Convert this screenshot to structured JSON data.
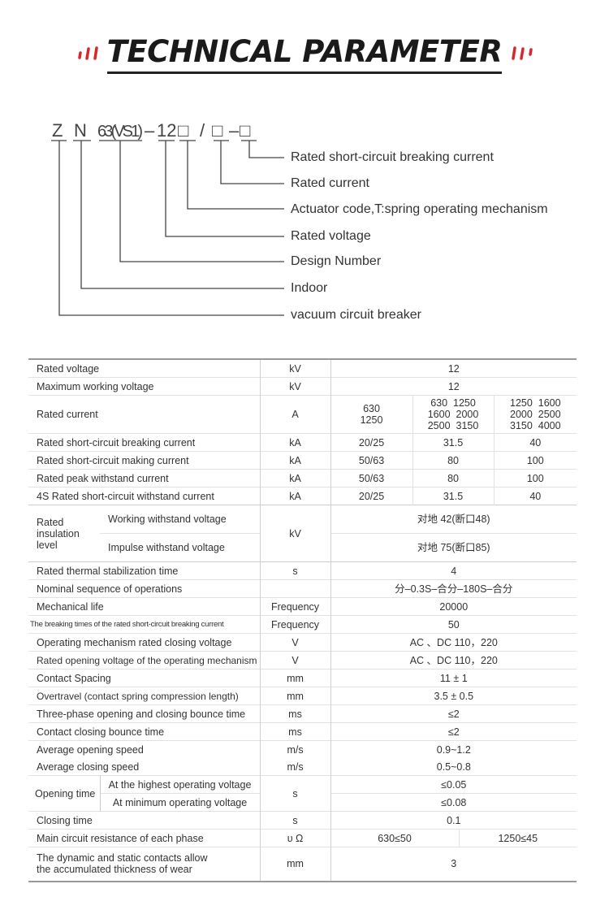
{
  "title": "TECHNICAL PARAMETER",
  "colors": {
    "accent": "#d8262c",
    "text": "#333333"
  },
  "model_code": {
    "z": "Z",
    "n": "N",
    "design": "63(VS1)",
    "dash1": "–",
    "voltage": "12",
    "box1": "□",
    "slash": "/",
    "box2": "□",
    "dash2": "–",
    "box3": "□"
  },
  "legend": [
    "Rated short-circuit breaking current",
    "Rated current",
    "Actuator code,T:spring operating mechanism",
    "Rated voltage",
    "Design Number",
    "Indoor",
    "vacuum circuit breaker"
  ],
  "table": {
    "r1": {
      "label": "Rated voltage",
      "unit": "kV",
      "value": "12"
    },
    "r2": {
      "label": "Maximum working voltage",
      "unit": "kV",
      "value": "12"
    },
    "r3": {
      "label": "Rated current",
      "unit": "A",
      "v1": "630\n1250",
      "v2": "630  1250\n1600  2000\n2500  3150",
      "v3": "1250  1600\n2000  2500\n3150  4000"
    },
    "r4": {
      "label": "Rated short-circuit breaking current",
      "unit": "kA",
      "v1": "20/25",
      "v2": "31.5",
      "v3": "40"
    },
    "r5": {
      "label": "Rated short-circuit making current",
      "unit": "kA",
      "v1": "50/63",
      "v2": "80",
      "v3": "100"
    },
    "r6": {
      "label": "Rated peak withstand current",
      "unit": "kA",
      "v1": "50/63",
      "v2": "80",
      "v3": "100"
    },
    "r7": {
      "label": "4S Rated short-circuit withstand current",
      "unit": "kA",
      "v1": "20/25",
      "v2": "31.5",
      "v3": "40"
    },
    "r8": {
      "group": "Rated insulation level",
      "sub1": "Working withstand voltage",
      "sub2": "Impulse withstand voltage",
      "unit": "kV",
      "v1": "对地  42(断口48)",
      "v2": "对地  75(断口85)"
    },
    "r9": {
      "label": "Rated thermal stabilization time",
      "unit": "s",
      "value": "4"
    },
    "r10": {
      "label": "Nominal sequence of operations",
      "unit": "",
      "value": "分–0.3S–合分–180S–合分"
    },
    "r11": {
      "label": "Mechanical life",
      "unit": "Frequency",
      "value": "20000"
    },
    "r12": {
      "label": "The breaking times of the rated short-circuit breaking current",
      "unit": "Frequency",
      "value": "50"
    },
    "r13": {
      "label": "Operating mechanism rated closing voltage",
      "unit": "V",
      "value": "AC 、DC  110，220"
    },
    "r14": {
      "label": "Rated opening voltage of the operating mechanism",
      "unit": "V",
      "value": "AC 、DC  110，220"
    },
    "r15": {
      "label": "Contact Spacing",
      "unit": "mm",
      "value": "11 ± 1"
    },
    "r16": {
      "label": "Overtravel (contact spring compression length)",
      "unit": "mm",
      "value": "3.5 ± 0.5"
    },
    "r17": {
      "label": "Three-phase opening and closing bounce time",
      "unit": "ms",
      "value": "≤2"
    },
    "r18": {
      "label": "Contact closing bounce time",
      "unit": "ms",
      "value": "≤2"
    },
    "r19": {
      "label1": "Average opening speed",
      "label2": "Average closing speed",
      "unit1": "m/s",
      "unit2": "m/s",
      "value1": "0.9~1.2",
      "value2": "0.5~0.8"
    },
    "r20": {
      "group": "Opening time",
      "sub1": "At the highest operating voltage",
      "sub2": "At minimum operating voltage",
      "unit": "s",
      "v1": "≤0.05",
      "v2": "≤0.08"
    },
    "r21": {
      "label": "Closing time",
      "unit": "s",
      "value": "0.1"
    },
    "r22": {
      "label": "Main circuit resistance of each phase",
      "unit": "υ Ω",
      "v1": "630≤50",
      "v2": "1250≤45"
    },
    "r23": {
      "label": "The dynamic and static contacts allow\nthe accumulated thickness of wear",
      "unit": "mm",
      "value": "3"
    }
  }
}
